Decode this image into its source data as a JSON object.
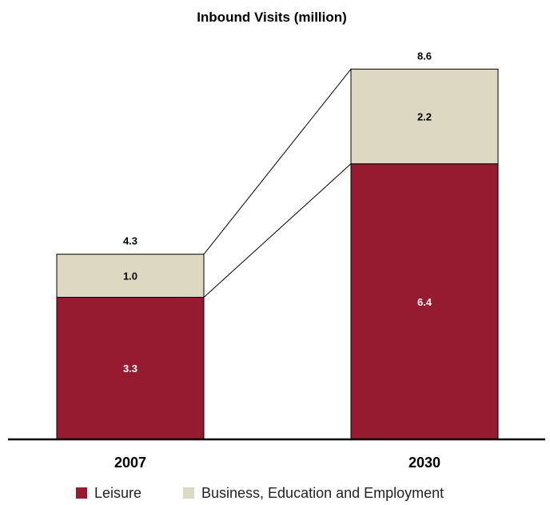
{
  "chart_data": {
    "type": "bar",
    "stacked": true,
    "title": "Inbound  Visits (million)",
    "categories": [
      "2007",
      "2030"
    ],
    "series": [
      {
        "name": "Leisure",
        "values": [
          3.3,
          6.4
        ],
        "color": "#961a30"
      },
      {
        "name": "Business, Education and Employment",
        "values": [
          1.0,
          2.2
        ],
        "color": "#ddd8c1"
      }
    ],
    "totals": [
      "4.3",
      "8.6"
    ],
    "segment_labels": [
      [
        "3.3",
        "1.0"
      ],
      [
        "6.4",
        "2.2"
      ]
    ],
    "xlabel": "",
    "ylabel": "",
    "ylim": [
      0,
      8.6
    ],
    "grid": false,
    "legend": "bottom",
    "connector_lines": true
  }
}
